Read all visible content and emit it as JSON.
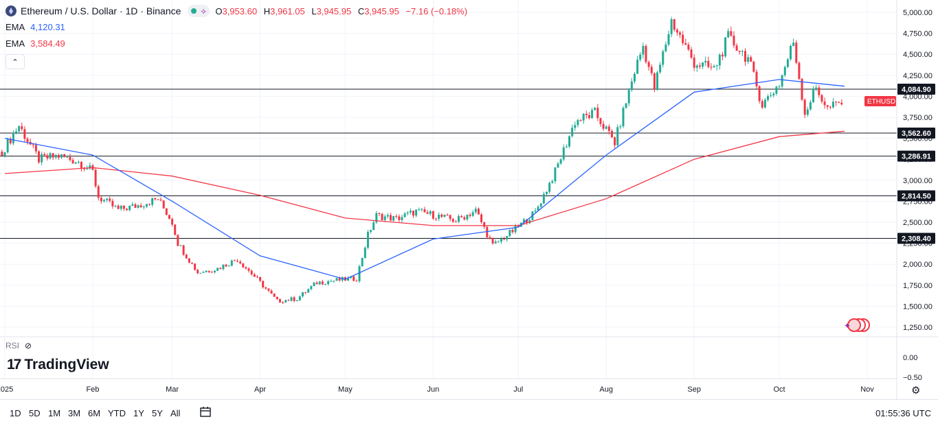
{
  "header": {
    "symbol_title": "Ethereum / U.S. Dollar · 1D · Binance",
    "ohlc": {
      "o_label": "O",
      "o": "3,953.60",
      "h_label": "H",
      "h": "3,961.05",
      "l_label": "L",
      "l": "3,945.95",
      "c_label": "C",
      "c": "3,945.95",
      "change": "−7.16 (−0.18%)"
    }
  },
  "indicators": [
    {
      "label": "EMA",
      "value": "4,120.31",
      "color": "#2962ff"
    },
    {
      "label": "EMA",
      "value": "3,584.49",
      "color": "#f23645"
    }
  ],
  "rsi_label": "RSI",
  "logo_text": "TradingView",
  "price_tag": "ETHUSD",
  "level_labels": [
    "4,084.90",
    "3,562.60",
    "3,286.91",
    "2,814.50",
    "2,308.40"
  ],
  "toolbar": {
    "timeframes": [
      "1D",
      "5D",
      "1M",
      "3M",
      "6M",
      "YTD",
      "1Y",
      "5Y",
      "All"
    ],
    "clock": "01:55:36 UTC"
  },
  "colors": {
    "up": "#22ab94",
    "down": "#f23645",
    "ema_fast": "#2962ff",
    "ema_slow": "#f23645"
  },
  "chart_data": {
    "type": "candlestick",
    "title": "Ethereum / U.S. Dollar · 1D · Binance",
    "y_ticks": [
      5000,
      4750,
      4500,
      4250,
      4000,
      3750,
      3500,
      3250,
      3000,
      2750,
      2500,
      2250,
      2000,
      1750,
      1500,
      1250
    ],
    "y_tick_labels": [
      "5,000.00",
      "4,750.00",
      "4,500.00",
      "4,250.00",
      "4,000.00",
      "3,750.00",
      "3,500.00",
      "3,250.00",
      "3,000.00",
      "2,750.00",
      "2,500.00",
      "2,250.00",
      "2,000.00",
      "1,750.00",
      "1,500.00",
      "1,250.00"
    ],
    "ylim": [
      1150,
      5100
    ],
    "rsi_ticks": [
      "0.00",
      "−0.50"
    ],
    "x_ticks": [
      {
        "label": "2025",
        "date": "2025-01-01"
      },
      {
        "label": "Feb",
        "date": "2025-02-01"
      },
      {
        "label": "Mar",
        "date": "2025-03-01"
      },
      {
        "label": "Apr",
        "date": "2025-04-01"
      },
      {
        "label": "May",
        "date": "2025-05-01"
      },
      {
        "label": "Jun",
        "date": "2025-06-01"
      },
      {
        "label": "Jul",
        "date": "2025-07-01"
      },
      {
        "label": "Aug",
        "date": "2025-08-01"
      },
      {
        "label": "Sep",
        "date": "2025-09-01"
      },
      {
        "label": "Oct",
        "date": "2025-10-01"
      },
      {
        "label": "Nov",
        "date": "2025-11-01"
      }
    ],
    "horizontal_levels": [
      4084.9,
      3562.6,
      3286.91,
      2814.5,
      2308.4
    ],
    "closes": [
      {
        "date": "2024-12-31",
        "close": 3340
      },
      {
        "date": "2025-01-06",
        "close": 3650
      },
      {
        "date": "2025-01-13",
        "close": 3250
      },
      {
        "date": "2025-01-20",
        "close": 3290
      },
      {
        "date": "2025-01-27",
        "close": 3220
      },
      {
        "date": "2025-02-01",
        "close": 3100
      },
      {
        "date": "2025-02-03",
        "close": 2800
      },
      {
        "date": "2025-02-10",
        "close": 2650
      },
      {
        "date": "2025-02-17",
        "close": 2700
      },
      {
        "date": "2025-02-24",
        "close": 2780
      },
      {
        "date": "2025-03-01",
        "close": 2500
      },
      {
        "date": "2025-03-03",
        "close": 2250
      },
      {
        "date": "2025-03-10",
        "close": 1900
      },
      {
        "date": "2025-03-17",
        "close": 1950
      },
      {
        "date": "2025-03-24",
        "close": 2060
      },
      {
        "date": "2025-03-31",
        "close": 1820
      },
      {
        "date": "2025-04-07",
        "close": 1560
      },
      {
        "date": "2025-04-14",
        "close": 1590
      },
      {
        "date": "2025-04-21",
        "close": 1780
      },
      {
        "date": "2025-04-28",
        "close": 1810
      },
      {
        "date": "2025-05-05",
        "close": 1830
      },
      {
        "date": "2025-05-09",
        "close": 2350
      },
      {
        "date": "2025-05-12",
        "close": 2580
      },
      {
        "date": "2025-05-19",
        "close": 2540
      },
      {
        "date": "2025-05-26",
        "close": 2630
      },
      {
        "date": "2025-06-02",
        "close": 2580
      },
      {
        "date": "2025-06-09",
        "close": 2520
      },
      {
        "date": "2025-06-16",
        "close": 2640
      },
      {
        "date": "2025-06-22",
        "close": 2220
      },
      {
        "date": "2025-06-30",
        "close": 2420
      },
      {
        "date": "2025-07-07",
        "close": 2620
      },
      {
        "date": "2025-07-14",
        "close": 3100
      },
      {
        "date": "2025-07-21",
        "close": 3700
      },
      {
        "date": "2025-07-28",
        "close": 3800
      },
      {
        "date": "2025-08-04",
        "close": 3450
      },
      {
        "date": "2025-08-11",
        "close": 4300
      },
      {
        "date": "2025-08-14",
        "close": 4600
      },
      {
        "date": "2025-08-18",
        "close": 4100
      },
      {
        "date": "2025-08-24",
        "close": 4900
      },
      {
        "date": "2025-09-01",
        "close": 4400
      },
      {
        "date": "2025-09-08",
        "close": 4320
      },
      {
        "date": "2025-09-13",
        "close": 4700
      },
      {
        "date": "2025-09-20",
        "close": 4450
      },
      {
        "date": "2025-09-25",
        "close": 3900
      },
      {
        "date": "2025-10-01",
        "close": 4150
      },
      {
        "date": "2025-10-06",
        "close": 4650
      },
      {
        "date": "2025-10-10",
        "close": 3800
      },
      {
        "date": "2025-10-14",
        "close": 4100
      },
      {
        "date": "2025-10-18",
        "close": 3850
      },
      {
        "date": "2025-10-24",
        "close": 3945.95
      }
    ],
    "ema_fast": [
      {
        "date": "2025-01-01",
        "value": 3500
      },
      {
        "date": "2025-02-01",
        "value": 3300
      },
      {
        "date": "2025-03-01",
        "value": 2750
      },
      {
        "date": "2025-04-01",
        "value": 2100
      },
      {
        "date": "2025-05-01",
        "value": 1820
      },
      {
        "date": "2025-06-01",
        "value": 2300
      },
      {
        "date": "2025-07-01",
        "value": 2440
      },
      {
        "date": "2025-08-01",
        "value": 3300
      },
      {
        "date": "2025-09-01",
        "value": 4050
      },
      {
        "date": "2025-10-01",
        "value": 4200
      },
      {
        "date": "2025-10-24",
        "value": 4120.31
      }
    ],
    "ema_slow": [
      {
        "date": "2025-01-01",
        "value": 3080
      },
      {
        "date": "2025-02-01",
        "value": 3150
      },
      {
        "date": "2025-03-01",
        "value": 3050
      },
      {
        "date": "2025-04-01",
        "value": 2820
      },
      {
        "date": "2025-05-01",
        "value": 2550
      },
      {
        "date": "2025-06-01",
        "value": 2460
      },
      {
        "date": "2025-07-01",
        "value": 2460
      },
      {
        "date": "2025-08-01",
        "value": 2780
      },
      {
        "date": "2025-09-01",
        "value": 3250
      },
      {
        "date": "2025-10-01",
        "value": 3520
      },
      {
        "date": "2025-10-24",
        "value": 3584.49
      }
    ]
  }
}
